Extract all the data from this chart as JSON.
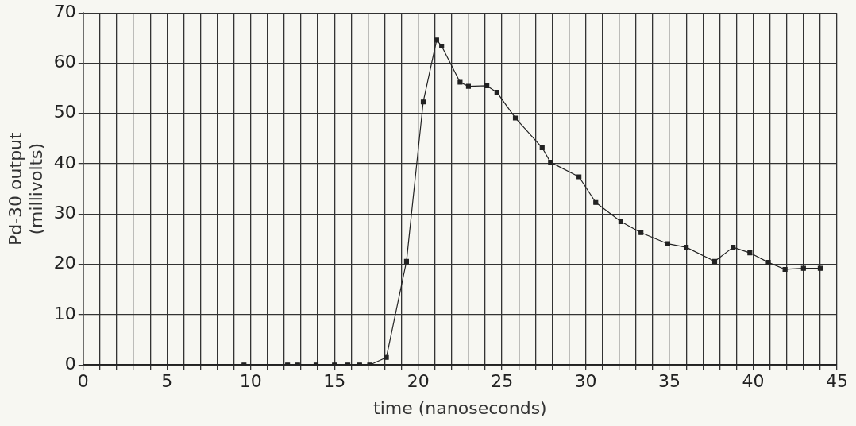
{
  "chart_data": {
    "type": "line",
    "xlabel": "time (nanoseconds)",
    "ylabel": "Pd-30 output\n(millivolts)",
    "x": [
      9.6,
      12.2,
      12.8,
      13.9,
      15.0,
      15.8,
      16.5,
      17.1,
      18.1,
      19.3,
      20.3,
      21.1,
      21.4,
      22.5,
      23.0,
      24.1,
      24.7,
      25.8,
      27.4,
      27.9,
      29.6,
      30.6,
      32.1,
      33.3,
      34.9,
      36.0,
      37.7,
      38.8,
      39.8,
      40.9,
      41.9,
      43.0,
      44.0
    ],
    "series": [
      {
        "color": "#222222",
        "values": [
          0,
          0,
          0,
          0,
          0,
          0,
          0,
          0,
          1.5,
          20.6,
          52.3,
          64.6,
          63.4,
          56.2,
          55.4,
          55.5,
          54.2,
          49.1,
          43.2,
          40.3,
          37.4,
          32.3,
          28.5,
          26.3,
          24.1,
          23.4,
          20.6,
          23.4,
          22.3,
          20.4,
          19.0,
          19.2,
          19.2
        ]
      }
    ],
    "xlim": [
      0,
      45
    ],
    "xticks": [
      0,
      {
        "value": 1,
        "label": null
      },
      {
        "value": 2,
        "label": null
      },
      {
        "value": 3,
        "label": null
      },
      {
        "value": 4,
        "label": null
      },
      5,
      {
        "value": 6,
        "label": null
      },
      {
        "value": 7,
        "label": null
      },
      {
        "value": 8,
        "label": null
      },
      {
        "value": 9,
        "label": null
      },
      10,
      {
        "value": 11,
        "label": null
      },
      {
        "value": 12,
        "label": null
      },
      {
        "value": 13,
        "label": null
      },
      {
        "value": 14,
        "label": null
      },
      15,
      {
        "value": 16,
        "label": null
      },
      {
        "value": 17,
        "label": null
      },
      {
        "value": 18,
        "label": null
      },
      {
        "value": 19,
        "label": null
      },
      20,
      {
        "value": 21,
        "label": null
      },
      {
        "value": 22,
        "label": null
      },
      {
        "value": 23,
        "label": null
      },
      {
        "value": 24,
        "label": null
      },
      25,
      {
        "value": 26,
        "label": null
      },
      {
        "value": 27,
        "label": null
      },
      {
        "value": 28,
        "label": null
      },
      {
        "value": 29,
        "label": null
      },
      30,
      {
        "value": 31,
        "label": null
      },
      {
        "value": 32,
        "label": null
      },
      {
        "value": 33,
        "label": null
      },
      {
        "value": 34,
        "label": null
      },
      35,
      {
        "value": 36,
        "label": null
      },
      {
        "value": 37,
        "label": null
      },
      {
        "value": 38,
        "label": null
      },
      {
        "value": 39,
        "label": null
      },
      40,
      {
        "value": 41,
        "label": null
      },
      {
        "value": 42,
        "label": null
      },
      {
        "value": 43,
        "label": null
      },
      {
        "value": 44,
        "label": null
      },
      45
    ],
    "ylim": [
      0,
      70
    ],
    "yticks": [
      0,
      10,
      20,
      30,
      40,
      50,
      60,
      70
    ],
    "grid": true,
    "legend": false,
    "marker": "square",
    "line_style": "solid"
  }
}
